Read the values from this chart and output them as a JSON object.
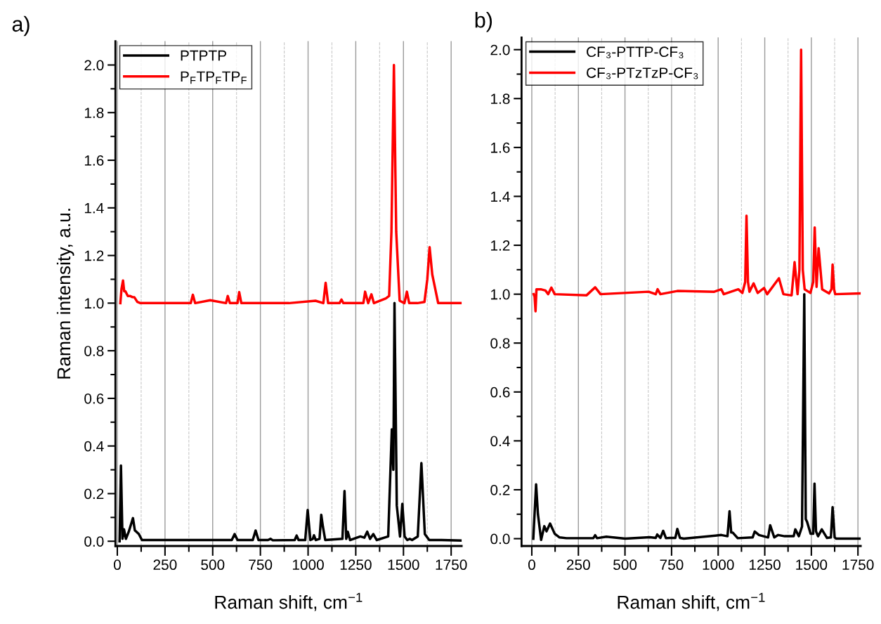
{
  "chart_data": [
    {
      "type": "line",
      "title": "a)",
      "xlabel": "Raman shift, cm$^{−1}$",
      "ylabel": "Raman intensity, a.u.",
      "xlim": [
        -10,
        1805
      ],
      "ylim": [
        -0.02,
        2.1
      ],
      "xticks": [
        0,
        {
          "value": 125,
          "label": null
        },
        250,
        {
          "value": 375,
          "label": null
        },
        500,
        {
          "value": 625,
          "label": null
        },
        750,
        {
          "value": 875,
          "label": null
        },
        1000,
        {
          "value": 1125,
          "label": null
        },
        1250,
        {
          "value": 1375,
          "label": null
        },
        1500,
        {
          "value": 1625,
          "label": null
        },
        1750
      ],
      "yticks": [
        {
          "value": 0,
          "label": "0.0"
        },
        {
          "value": 0.1,
          "label": null
        },
        {
          "value": 0.2,
          "label": "0.2"
        },
        {
          "value": 0.3,
          "label": null
        },
        {
          "value": 0.4,
          "label": "0.4"
        },
        {
          "value": 0.5,
          "label": null
        },
        {
          "value": 0.6,
          "label": "0.6"
        },
        {
          "value": 0.7,
          "label": null
        },
        {
          "value": 0.8,
          "label": "0.8"
        },
        {
          "value": 0.9,
          "label": null
        },
        {
          "value": 1.0,
          "label": "1.0"
        },
        {
          "value": 1.1,
          "label": null
        },
        {
          "value": 1.2,
          "label": "1.2"
        },
        {
          "value": 1.3,
          "label": null
        },
        {
          "value": 1.4,
          "label": "1.4"
        },
        {
          "value": 1.5,
          "label": null
        },
        {
          "value": 1.6,
          "label": "1.6"
        },
        {
          "value": 1.7,
          "label": null
        },
        {
          "value": 1.8,
          "label": "1.8"
        },
        {
          "value": 1.9,
          "label": null
        },
        {
          "value": 2.0,
          "label": "2.0"
        }
      ],
      "grid": "x",
      "legend": "top left",
      "series": [
        {
          "name": "PTPTP",
          "color": "#000000",
          "x": [
            12,
            19,
            27,
            35,
            45,
            60,
            82,
            92,
            100,
            113,
            129,
            300,
            600,
            615,
            630,
            710,
            725,
            740,
            790,
            803,
            815,
            930,
            940,
            950,
            985,
            998,
            1012,
            1025,
            1031,
            1040,
            1060,
            1069,
            1078,
            1090,
            1180,
            1191,
            1200,
            1208,
            1220,
            1274,
            1295,
            1310,
            1325,
            1342,
            1360,
            1420,
            1439,
            1447,
            1453,
            1465,
            1482,
            1494,
            1506,
            1520,
            1533,
            1545,
            1575,
            1594,
            1612,
            1635,
            1700,
            1805
          ],
          "values": [
            0.0,
            0.318,
            0.01,
            0.05,
            0.01,
            0.04,
            0.097,
            0.045,
            0.04,
            0.03,
            0.005,
            0.005,
            0.005,
            0.03,
            0.005,
            0.005,
            0.045,
            0.005,
            0.005,
            0.01,
            0.004,
            0.005,
            0.024,
            0.005,
            0.005,
            0.131,
            0.005,
            0.01,
            0.025,
            0.005,
            0.01,
            0.111,
            0.06,
            0.005,
            0.01,
            0.211,
            0.01,
            0.04,
            0.005,
            0.02,
            0.015,
            0.04,
            0.01,
            0.03,
            0.005,
            0.02,
            0.47,
            0.3,
            1.0,
            0.15,
            0.02,
            0.157,
            0.02,
            0.005,
            0.01,
            0.005,
            0.02,
            0.328,
            0.03,
            0.005,
            0.005,
            0.003
          ]
        },
        {
          "name": "P$_{F}$TP$_{F}$TP$_{F}$",
          "color": "#ff0000",
          "x": [
            16,
            22,
            30,
            36,
            42,
            55,
            66,
            80,
            89,
            105,
            121,
            250,
            385,
            396,
            408,
            487,
            570,
            579,
            590,
            630,
            639,
            650,
            900,
            1039,
            1080,
            1092,
            1105,
            1165,
            1175,
            1185,
            1290,
            1299,
            1315,
            1332,
            1345,
            1408,
            1425,
            1437,
            1450,
            1462,
            1480,
            1505,
            1518,
            1530,
            1573,
            1610,
            1625,
            1637,
            1651,
            1682,
            1750,
            1805
          ],
          "values": [
            1.0,
            1.06,
            1.095,
            1.05,
            1.05,
            1.03,
            1.03,
            1.025,
            1.025,
            1.005,
            1.0,
            1.0,
            1.0,
            1.035,
            1.0,
            1.012,
            1.0,
            1.03,
            1.0,
            1.0,
            1.046,
            1.0,
            1.0,
            1.01,
            1.0,
            1.085,
            1.0,
            1.0,
            1.015,
            1.0,
            1.0,
            1.048,
            1.0,
            1.037,
            1.0,
            1.02,
            1.03,
            1.3,
            2.0,
            1.3,
            1.01,
            1.0,
            1.048,
            1.0,
            1.0,
            1.005,
            1.1,
            1.235,
            1.12,
            1.0,
            1.0,
            1.0
          ]
        }
      ]
    },
    {
      "type": "line",
      "title": "b)",
      "xlabel": "Raman shift, cm$^{−1}$",
      "xlim": [
        -55,
        1765
      ],
      "ylim": [
        -0.03,
        2.05
      ],
      "xticks": [
        0,
        {
          "value": 125,
          "label": null
        },
        250,
        {
          "value": 375,
          "label": null
        },
        500,
        {
          "value": 625,
          "label": null
        },
        750,
        {
          "value": 875,
          "label": null
        },
        1000,
        {
          "value": 1125,
          "label": null
        },
        1250,
        {
          "value": 1375,
          "label": null
        },
        1500,
        {
          "value": 1625,
          "label": null
        },
        1750
      ],
      "yticks": [
        {
          "value": 0,
          "label": "0.0"
        },
        {
          "value": 0.1,
          "label": null
        },
        {
          "value": 0.2,
          "label": "0.2"
        },
        {
          "value": 0.3,
          "label": null
        },
        {
          "value": 0.4,
          "label": "0.4"
        },
        {
          "value": 0.5,
          "label": null
        },
        {
          "value": 0.6,
          "label": "0.6"
        },
        {
          "value": 0.7,
          "label": null
        },
        {
          "value": 0.8,
          "label": "0.8"
        },
        {
          "value": 0.9,
          "label": null
        },
        {
          "value": 1.0,
          "label": "1.0"
        },
        {
          "value": 1.1,
          "label": null
        },
        {
          "value": 1.2,
          "label": "1.2"
        },
        {
          "value": 1.3,
          "label": null
        },
        {
          "value": 1.4,
          "label": "1.4"
        },
        {
          "value": 1.5,
          "label": null
        },
        {
          "value": 1.6,
          "label": "1.6"
        },
        {
          "value": 1.7,
          "label": null
        },
        {
          "value": 1.8,
          "label": "1.8"
        },
        {
          "value": 1.9,
          "label": null
        },
        {
          "value": 2.0,
          "label": "2.0"
        }
      ],
      "grid": "x",
      "legend": "top left",
      "series": [
        {
          "name": "CF₃-PTTP-CF₃",
          "color": "#000000",
          "x": [
            8,
            23,
            33,
            50,
            67,
            79,
            98,
            123,
            149,
            186,
            330,
            340,
            350,
            400,
            501,
            633,
            665,
            673,
            690,
            705,
            720,
            740,
            770,
            781,
            795,
            816,
            1017,
            1050,
            1061,
            1070,
            1078,
            1105,
            1185,
            1196,
            1219,
            1268,
            1279,
            1301,
            1322,
            1357,
            1405,
            1414,
            1433,
            1450,
            1462,
            1470,
            1477,
            1496,
            1510,
            1517,
            1525,
            1536,
            1556,
            1584,
            1605,
            1614,
            1625,
            1634,
            1760
          ],
          "values": [
            0.0,
            0.222,
            0.1,
            -0.005,
            0.051,
            0.03,
            0.062,
            0.02,
            0.005,
            0.002,
            0.002,
            0.014,
            0.002,
            0.008,
            0.0,
            0.006,
            0.003,
            0.017,
            0.003,
            0.032,
            0.002,
            0.003,
            0.003,
            0.04,
            0.003,
            0.0,
            0.015,
            0.01,
            0.112,
            0.025,
            0.025,
            0.002,
            0.005,
            0.029,
            0.015,
            0.005,
            0.055,
            0.005,
            0.015,
            0.01,
            0.01,
            0.038,
            0.01,
            0.05,
            1.0,
            0.08,
            0.069,
            0.02,
            0.02,
            0.225,
            0.03,
            0.01,
            0.038,
            0.003,
            0.005,
            0.129,
            0.005,
            0.0,
            0.0
          ]
        },
        {
          "name": "CF₃-PTzTzP-CF₃",
          "color": "#ff0000",
          "x": [
            10,
            15,
            20,
            25,
            48,
            73,
            88,
            105,
            123,
            293,
            340,
            369,
            627,
            665,
            675,
            690,
            781,
            979,
            1017,
            1030,
            1108,
            1130,
            1145,
            1152,
            1160,
            1168,
            1190,
            1212,
            1246,
            1263,
            1326,
            1350,
            1394,
            1410,
            1426,
            1436,
            1445,
            1454,
            1464,
            1495,
            1510,
            1518,
            1528,
            1539,
            1558,
            1595,
            1608,
            1614,
            1622,
            1628,
            1760
          ],
          "values": [
            1.0,
            0.99,
            0.93,
            1.02,
            1.02,
            1.015,
            1.0,
            1.027,
            1.0,
            0.995,
            1.028,
            1.0,
            1.01,
            1.0,
            1.02,
            1.0,
            1.013,
            1.01,
            1.02,
            1.0,
            1.02,
            1.005,
            1.05,
            1.321,
            1.05,
            1.01,
            1.044,
            1.005,
            1.025,
            1.0,
            1.065,
            1.0,
            0.995,
            1.131,
            1.0,
            1.1,
            2.0,
            1.1,
            1.02,
            1.005,
            1.05,
            1.273,
            1.03,
            1.188,
            1.02,
            1.003,
            1.02,
            1.121,
            1.02,
            1.0,
            1.003
          ]
        }
      ]
    }
  ]
}
